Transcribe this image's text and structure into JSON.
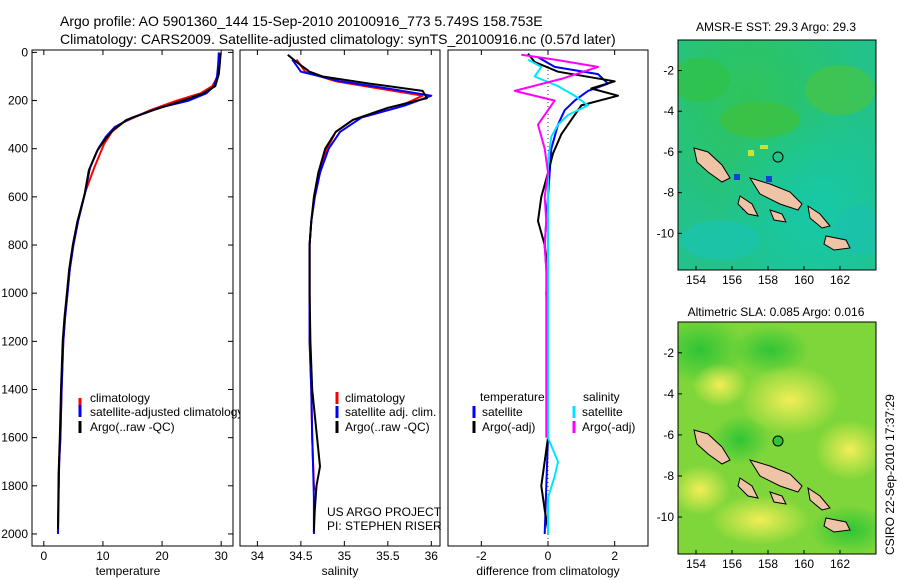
{
  "header": {
    "line1": "Argo profile: AO 5901360_144 15-Sep-2010 20100916_773 5.749S 158.753E",
    "line2": "Climatology: CARS2009. Satellite-adjusted climatology: synTS_20100916.nc (0.57d later)"
  },
  "footer_note": "CSIRO 22-Sep-2010 17:37:29",
  "credits": [
    "US ARGO PROJECT",
    "PI: STEPHEN RISER"
  ],
  "colors": {
    "climatology": "#ff0000",
    "satellite": "#0000ff",
    "argo": "#000000",
    "argo_adj_sal": "#ff00ff",
    "sat_sal": "#00e5ff"
  },
  "chart_data": [
    {
      "type": "line",
      "xlabel": "temperature",
      "ylabel": "",
      "xlim": [
        -2,
        32
      ],
      "ylim": [
        2050,
        -10
      ],
      "xticks": [
        0,
        10,
        20,
        30
      ],
      "yticks": [
        0,
        200,
        400,
        600,
        800,
        1000,
        1200,
        1400,
        1600,
        1800,
        2000
      ],
      "legend": [
        "climatology",
        "satellite-adjusted climatology",
        "Argo(..raw -QC)"
      ],
      "series": [
        {
          "name": "climatology",
          "color": "#ff0000",
          "x": [
            29.8,
            29.7,
            29.4,
            28.5,
            26.5,
            22.5,
            18.0,
            13.5,
            11.5,
            10.2,
            8.5,
            7.0,
            5.8,
            5.0,
            4.4,
            4.0,
            3.6,
            3.3,
            3.0,
            2.8,
            2.6,
            2.5
          ],
          "y": [
            0,
            50,
            100,
            140,
            170,
            200,
            240,
            290,
            330,
            380,
            480,
            580,
            700,
            800,
            900,
            1000,
            1100,
            1200,
            1400,
            1600,
            1700,
            1810
          ]
        },
        {
          "name": "satellite-adjusted climatology",
          "color": "#0000ff",
          "x": [
            29.6,
            29.5,
            29.3,
            28.8,
            27.5,
            24.5,
            19.5,
            15.0,
            12.0,
            10.5,
            9.2,
            7.8,
            7.0,
            5.8,
            5.0,
            4.4,
            4.0,
            3.6,
            3.3,
            3.0,
            2.8,
            2.6,
            2.5,
            2.4
          ],
          "y": [
            0,
            50,
            100,
            140,
            170,
            200,
            230,
            270,
            310,
            350,
            400,
            480,
            580,
            700,
            800,
            900,
            1000,
            1100,
            1200,
            1400,
            1600,
            1700,
            1850,
            2000
          ]
        },
        {
          "name": "Argo(..raw -QC)",
          "color": "#000000",
          "x": [
            29.9,
            29.8,
            29.6,
            29.0,
            27.0,
            23.5,
            18.5,
            14.0,
            11.8,
            10.4,
            9.0,
            7.6,
            6.9,
            5.7,
            4.9,
            4.3,
            3.9,
            3.5,
            3.2,
            2.9,
            2.7,
            2.5,
            2.4
          ],
          "y": [
            5,
            40,
            90,
            140,
            170,
            200,
            240,
            280,
            320,
            360,
            410,
            490,
            590,
            700,
            800,
            900,
            1000,
            1100,
            1200,
            1400,
            1600,
            1750,
            1980
          ]
        }
      ]
    },
    {
      "type": "line",
      "xlabel": "salinity",
      "ylabel": "",
      "xlim": [
        33.8,
        36.1
      ],
      "ylim": [
        2050,
        -10
      ],
      "xticks": [
        34,
        34.5,
        35,
        35.5,
        36
      ],
      "yticks": [],
      "legend": [
        "climatology",
        "satellite adj. clim.",
        "Argo(..raw -QC)"
      ],
      "series": [
        {
          "name": "climatology",
          "color": "#ff0000",
          "x": [
            34.45,
            34.55,
            34.9,
            35.4,
            35.9,
            35.6,
            35.1,
            34.9,
            34.8,
            34.72,
            34.66,
            34.62,
            34.6,
            34.6,
            34.6,
            34.62,
            34.63,
            34.64,
            34.65,
            34.66
          ],
          "y": [
            30,
            80,
            120,
            150,
            180,
            230,
            280,
            330,
            400,
            500,
            600,
            700,
            800,
            1000,
            1200,
            1400,
            1600,
            1700,
            1800,
            1820
          ]
        },
        {
          "name": "satellite adj. clim.",
          "color": "#0000ff",
          "x": [
            34.4,
            34.5,
            34.95,
            35.5,
            36.0,
            35.7,
            35.2,
            34.95,
            34.82,
            34.72,
            34.66,
            34.62,
            34.6,
            34.6,
            34.6,
            34.62,
            34.63,
            34.64,
            34.65,
            34.65
          ],
          "y": [
            30,
            80,
            120,
            150,
            180,
            220,
            270,
            330,
            400,
            500,
            600,
            700,
            800,
            1000,
            1200,
            1400,
            1600,
            1700,
            1850,
            2000
          ]
        },
        {
          "name": "Argo(..raw -QC)",
          "color": "#000000",
          "x": [
            34.35,
            34.45,
            34.6,
            34.75,
            35.3,
            35.9,
            35.95,
            35.5,
            35.1,
            34.9,
            34.78,
            34.7,
            34.65,
            34.62,
            34.6,
            34.6,
            34.61,
            34.63,
            34.72,
            34.68,
            34.66,
            34.65
          ],
          "y": [
            10,
            40,
            80,
            100,
            130,
            160,
            190,
            230,
            280,
            330,
            400,
            500,
            600,
            700,
            800,
            1000,
            1200,
            1400,
            1720,
            1800,
            1900,
            1990
          ]
        }
      ]
    },
    {
      "type": "line",
      "xlabel": "difference from climatology",
      "ylabel": "",
      "xlim": [
        -3,
        3
      ],
      "ylim": [
        2050,
        -10
      ],
      "xticks": [
        -2,
        0,
        2
      ],
      "yticks": [],
      "legend_titles": [
        "temperature",
        "salinity"
      ],
      "legend": [
        "satellite",
        "Argo(-adj)",
        "satellite",
        "Argo(-adj)"
      ],
      "series": [
        {
          "name": "satellite",
          "group": "temperature",
          "color": "#0000ff",
          "x": [
            -0.3,
            0.2,
            1.5,
            1.8,
            1.2,
            0.8,
            0.5,
            0.3,
            0.1,
            0.05,
            0.0,
            -0.05,
            -0.1,
            -0.05,
            0.0,
            0.0,
            0.0,
            0.0,
            -0.05,
            -0.1
          ],
          "y": [
            20,
            60,
            90,
            130,
            160,
            200,
            240,
            300,
            400,
            500,
            600,
            700,
            800,
            900,
            1000,
            1200,
            1400,
            1600,
            1800,
            2000
          ]
        },
        {
          "name": "Argo(-adj)",
          "group": "temperature",
          "color": "#000000",
          "x": [
            -0.6,
            -0.4,
            0.3,
            2.0,
            1.3,
            2.1,
            1.0,
            0.7,
            0.4,
            0.15,
            0.0,
            -0.2,
            -0.3,
            -0.1,
            0.0,
            -0.05,
            0.0,
            0.0,
            0.0,
            -0.2,
            -0.1,
            0.0
          ],
          "y": [
            5,
            40,
            80,
            120,
            150,
            180,
            220,
            280,
            340,
            420,
            500,
            600,
            700,
            800,
            900,
            1000,
            1200,
            1400,
            1600,
            1800,
            1900,
            1980
          ]
        },
        {
          "name": "satellite",
          "group": "salinity",
          "color": "#00e5ff",
          "x": [
            -0.6,
            -0.2,
            -0.4,
            0.3,
            0.8,
            1.2,
            0.6,
            0.3,
            0.1,
            0.0,
            0.0,
            0.0,
            0.0,
            0.0,
            0.0,
            0.0,
            0.3,
            0.2,
            0.0,
            0.0
          ],
          "y": [
            30,
            60,
            100,
            140,
            180,
            220,
            260,
            300,
            350,
            450,
            600,
            800,
            1000,
            1200,
            1400,
            1600,
            1700,
            1760,
            1850,
            2000
          ]
        },
        {
          "name": "Argo(-adj)",
          "group": "salinity",
          "color": "#ff00ff",
          "x": [
            -0.8,
            0.2,
            1.5,
            0.4,
            -1.0,
            0.2,
            -0.3,
            -0.1,
            0.0,
            -0.1,
            -0.05,
            -0.1,
            -0.05,
            -0.05,
            -0.05,
            -0.05,
            -0.05
          ],
          "y": [
            10,
            30,
            60,
            110,
            160,
            200,
            300,
            400,
            500,
            600,
            700,
            800,
            900,
            1000,
            1200,
            1400,
            1600
          ]
        }
      ]
    }
  ],
  "maps": [
    {
      "title": "AMSR-E SST: 29.3 Argo: 29.3",
      "xticks": [
        "154",
        "156",
        "158",
        "160",
        "162"
      ],
      "yticks": [
        "-2",
        "-4",
        "-6",
        "-8",
        "-10"
      ],
      "xlim": [
        153,
        164
      ],
      "ylim": [
        -11.8,
        -0.5
      ]
    },
    {
      "title": "Altimetric SLA: 0.085 Argo: 0.016",
      "xticks": [
        "154",
        "156",
        "158",
        "160",
        "162"
      ],
      "yticks": [
        "-2",
        "-4",
        "-6",
        "-8",
        "-10"
      ],
      "xlim": [
        153,
        164
      ],
      "ylim": [
        -11.8,
        -0.5
      ]
    }
  ]
}
